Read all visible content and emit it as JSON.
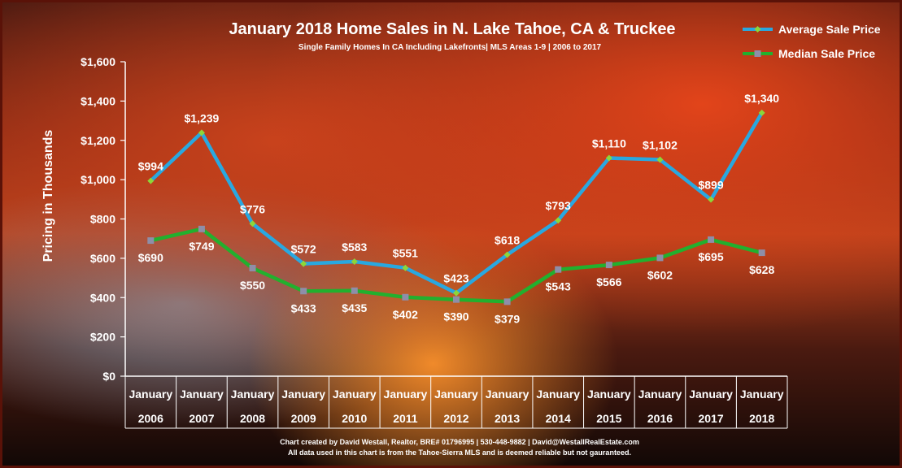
{
  "chart_data": {
    "type": "line",
    "title": "January 2018 Home Sales in N. Lake Tahoe, CA & Truckee",
    "subtitle": "Single Family Homes In  CA Including  Lakefronts| MLS Areas 1-9  | 2006 to 2017",
    "ylabel": "Pricing in Thousands",
    "xlabel": "",
    "ylim": [
      0,
      1600
    ],
    "yticks": [
      "$0",
      "$200",
      "$400",
      "$600",
      "$800",
      "$1,000",
      "$1,200",
      "$1,400",
      "$1,600"
    ],
    "yticks_values": [
      0,
      200,
      400,
      600,
      800,
      1000,
      1200,
      1400,
      1600
    ],
    "categories_month": [
      "January",
      "January",
      "January",
      "January",
      "January",
      "January",
      "January",
      "January",
      "January",
      "January",
      "January",
      "January",
      "January"
    ],
    "categories_year": [
      "2006",
      "2007",
      "2008",
      "2009",
      "2010",
      "2011",
      "2012",
      "2013",
      "2014",
      "2015",
      "2016",
      "2017",
      "2018"
    ],
    "series": [
      {
        "name": "Average Sale Price",
        "color": "#29a8e0",
        "marker_color": "#8cd63a",
        "values": [
          994,
          1239,
          776,
          572,
          583,
          551,
          423,
          618,
          793,
          1110,
          1102,
          899,
          1340
        ],
        "labels": [
          "$994",
          "$1,239",
          "$776",
          "$572",
          "$583",
          "$551",
          "$423",
          "$618",
          "$793",
          "$1,110",
          "$1,102",
          "$899",
          "$1,340"
        ]
      },
      {
        "name": "Median Sale Price",
        "color": "#22b02e",
        "marker_color": "#8e8ea8",
        "values": [
          690,
          749,
          550,
          433,
          435,
          402,
          390,
          379,
          543,
          566,
          602,
          695,
          628
        ],
        "labels": [
          "$690",
          "$749",
          "$550",
          "$433",
          "$435",
          "$402",
          "$390",
          "$379",
          "$543",
          "$566",
          "$602",
          "$695",
          "$628"
        ]
      }
    ],
    "legend_position": "top-right",
    "grid": false,
    "footer": [
      "Chart created by David Westall, Realtor, BRE# 01796995 | 530-448-9882 | David@WestallRealEstate.com",
      "All data used in this chart is from the Tahoe-Sierra MLS and is deemed reliable but  not gauranteed."
    ]
  }
}
